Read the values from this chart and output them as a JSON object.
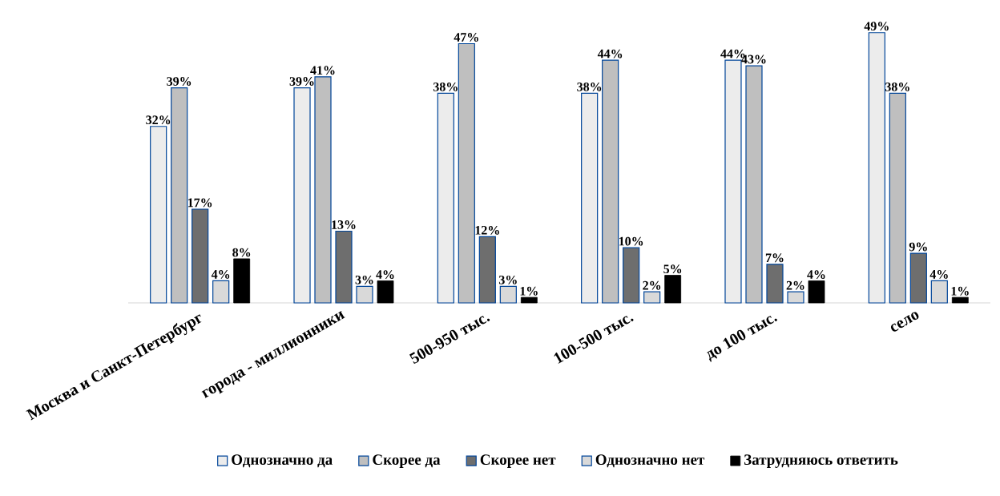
{
  "chart_data": {
    "type": "bar",
    "categories": [
      "Москва и Санкт-Петербург",
      "города - миллионники",
      "500-950 тыс.",
      "100-500 тыс.",
      "до 100 тыс.",
      "село"
    ],
    "series": [
      {
        "name": "Однозначно да",
        "color": "#ececec",
        "values": [
          32,
          39,
          38,
          38,
          44,
          49
        ],
        "value_labels": [
          "32%",
          "39%",
          "38%",
          "38%",
          "44%",
          "49%"
        ]
      },
      {
        "name": "Скорее да",
        "color": "#bfbfbf",
        "values": [
          39,
          41,
          47,
          44,
          43,
          38
        ],
        "value_labels": [
          "39%",
          "41%",
          "47%",
          "44%",
          "43%",
          "38%"
        ]
      },
      {
        "name": "Скорее нет",
        "color": "#6e6e6e",
        "values": [
          17,
          13,
          12,
          10,
          7,
          9
        ],
        "value_labels": [
          "17%",
          "13%",
          "12%",
          "10%",
          "7%",
          "9%"
        ]
      },
      {
        "name": "Однозначно нет",
        "color": "#d9d9d9",
        "values": [
          4,
          3,
          3,
          2,
          2,
          4
        ],
        "value_labels": [
          "4%",
          "3%",
          "3%",
          "2%",
          "2%",
          "4%"
        ]
      },
      {
        "name": "Затрудняюсь ответить",
        "color": "#000000",
        "values": [
          8,
          4,
          1,
          5,
          4,
          1
        ],
        "value_labels": [
          "8%",
          "4%",
          "1%",
          "5%",
          "4%",
          "1%"
        ]
      }
    ],
    "legend": "bottom",
    "grid": false
  }
}
